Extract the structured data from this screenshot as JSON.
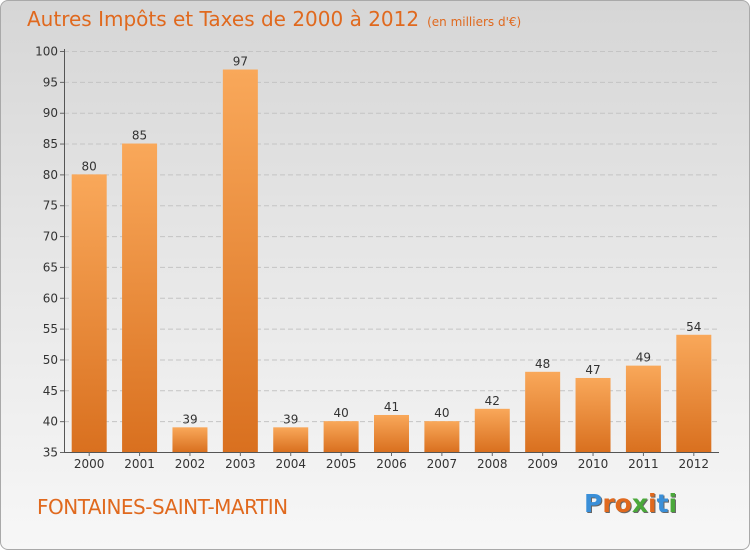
{
  "chart_data": {
    "type": "bar",
    "title": "Autres Impôts et Taxes de 2000 à 2012",
    "subtitle": "(en milliers d'€)",
    "categories": [
      "2000",
      "2001",
      "2002",
      "2003",
      "2004",
      "2005",
      "2006",
      "2007",
      "2008",
      "2009",
      "2010",
      "2011",
      "2012"
    ],
    "values": [
      80,
      85,
      39,
      97,
      39,
      40,
      41,
      40,
      42,
      48,
      47,
      49,
      54
    ],
    "ylim": [
      35,
      100
    ],
    "yticks": [
      35,
      40,
      45,
      50,
      55,
      60,
      65,
      70,
      75,
      80,
      85,
      90,
      95,
      100
    ],
    "grid": true,
    "bar_color_top": "#f9a85a",
    "bar_color_bottom": "#d9701f"
  },
  "footer": {
    "commune": "FONTAINES-SAINT-MARTIN",
    "logo_text": "Proxiti"
  },
  "colors": {
    "title": "#e0691e",
    "logo": [
      "#3a8fd8",
      "#e0691e",
      "#e0691e",
      "#4aa83a",
      "#e0691e",
      "#3a8fd8",
      "#4aa83a"
    ]
  }
}
